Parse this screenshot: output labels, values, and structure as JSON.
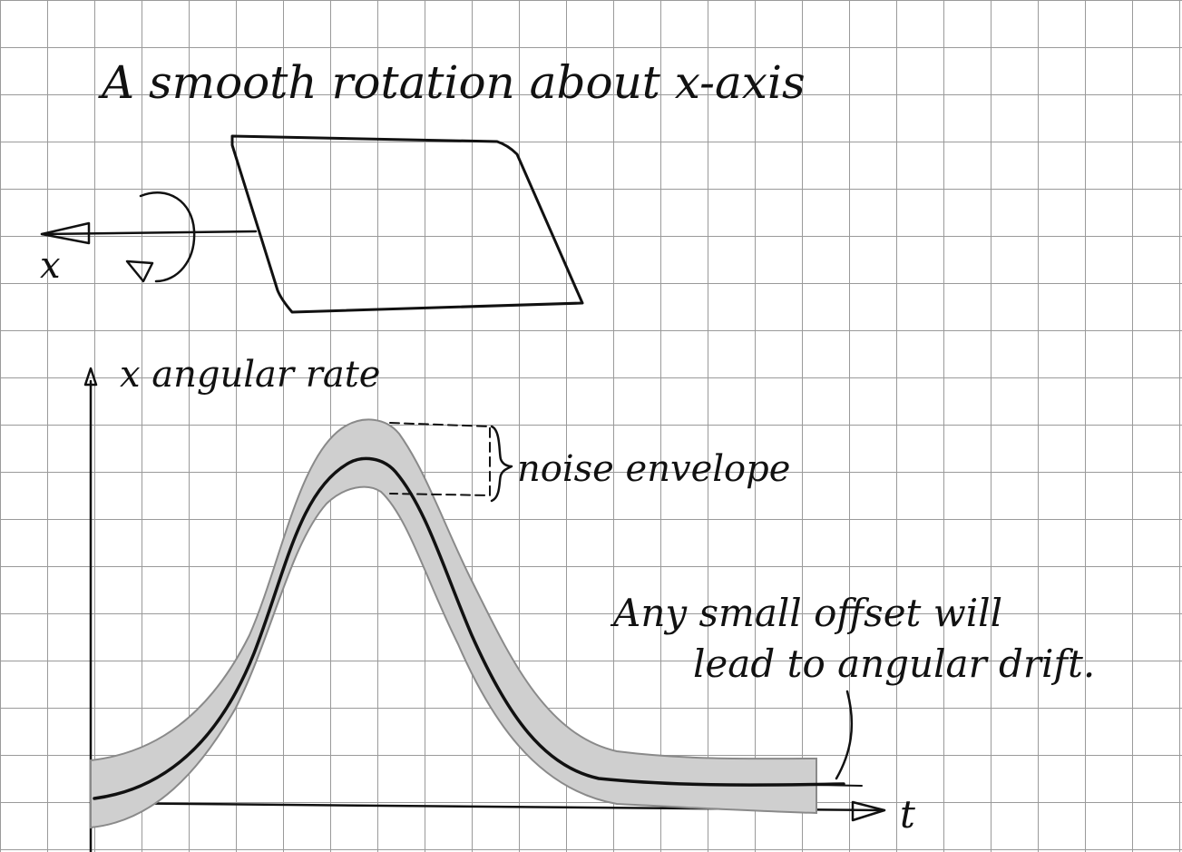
{
  "title": "A smooth rotation about x-axis",
  "rotation_axis_label": "x",
  "graph": {
    "y_axis_label": "x angular rate",
    "x_axis_label": "t"
  },
  "annotations": {
    "noise": "noise envelope",
    "drift_line1": "Any small offset will",
    "drift_line2": "lead to angular drift."
  },
  "colors": {
    "ink": "#111111",
    "grid": "#9a9a9a",
    "envelope": "#cfcfcf",
    "paper": "#ffffff"
  }
}
